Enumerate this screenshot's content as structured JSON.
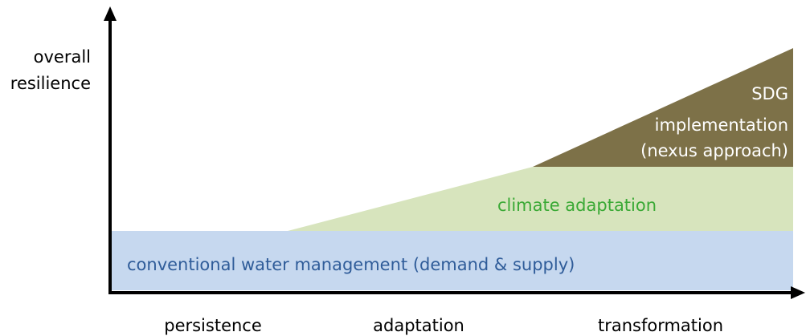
{
  "y_axis": {
    "label_lines": [
      "overall",
      "resilience"
    ]
  },
  "layers": {
    "base": {
      "label": "conventional water management (demand & supply)"
    },
    "middle": {
      "label": "climate adaptation"
    },
    "top": {
      "label_lines": [
        "SDG",
        "implementation",
        "(nexus approach)"
      ]
    }
  },
  "x_axis": {
    "stages": [
      "persistence",
      "adaptation",
      "transformation"
    ]
  }
}
